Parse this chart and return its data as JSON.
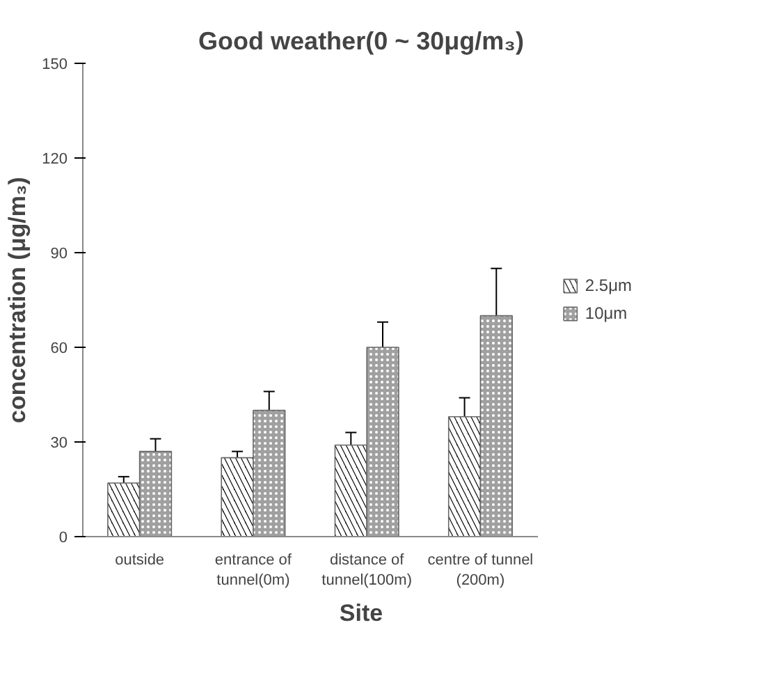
{
  "chart_data": {
    "type": "bar",
    "title": "Good weather(0 ~ 30μg/m₃)",
    "xlabel": "Site",
    "ylabel": "concentration (μg/m₃)",
    "categories": [
      "outside",
      "entrance of tunnel(0m)",
      "distance of tunnel(100m)",
      "centre of tunnel (200m)"
    ],
    "series": [
      {
        "name": "2.5μm",
        "color": "#000000",
        "values": [
          17,
          25,
          29,
          38
        ],
        "errors": [
          2,
          2,
          4,
          6
        ]
      },
      {
        "name": "10μm",
        "color": "#a0a0a0",
        "values": [
          27,
          40,
          60,
          70
        ],
        "errors": [
          4,
          6,
          8,
          15
        ]
      }
    ],
    "ylim": [
      0,
      150
    ],
    "yticks": [
      0,
      30,
      60,
      90,
      120,
      150
    ],
    "legend": "right"
  }
}
